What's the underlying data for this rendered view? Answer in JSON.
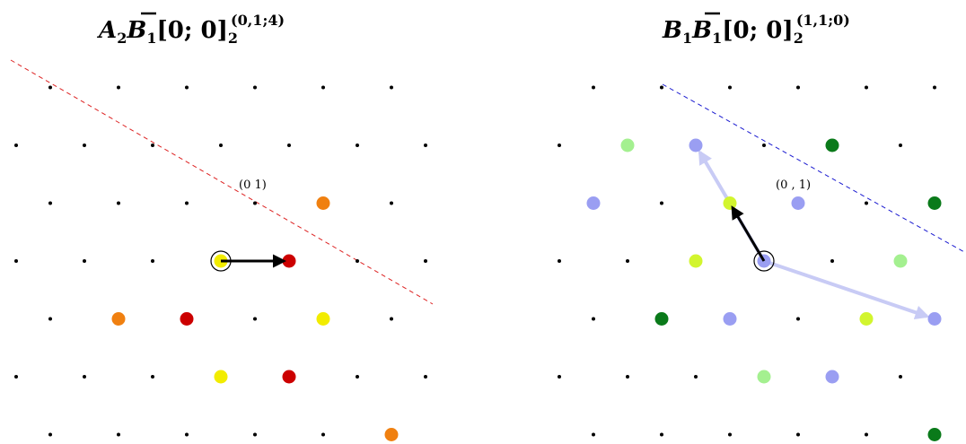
{
  "colors": {
    "lattice": "#000000",
    "red": "#cc0000",
    "orange": "#f08010",
    "yellow": "#f2ec00",
    "darkgreen": "#0a7a1a",
    "lightgreen": "#a4f090",
    "yellowgreen": "#d2f52e",
    "lavender": "#9a9ef2",
    "lavender_arrow": "#c8cbf5",
    "red_dashed": "#dd2222",
    "blue_dashed": "#1a1ad0"
  },
  "panels": [
    {
      "name": "left",
      "title": {
        "base": "A",
        "sub1": "2",
        "bar": "B",
        "sub2": "1",
        "bracket": "[0; 0]",
        "sub3": "2",
        "sup": "(0,1;4)"
      },
      "label": "(0 1)",
      "colored_points": [
        {
          "pos": [
            2,
            1
          ],
          "color": "orange"
        },
        {
          "pos": [
            1,
            0
          ],
          "color": "red"
        },
        {
          "pos": [
            0,
            0
          ],
          "color": "yellow"
        },
        {
          "pos": [
            -2,
            -1
          ],
          "color": "orange"
        },
        {
          "pos": [
            -1,
            -1
          ],
          "color": "red"
        },
        {
          "pos": [
            1,
            -1
          ],
          "color": "yellow"
        },
        {
          "pos": [
            -1,
            -2
          ],
          "color": "yellow"
        },
        {
          "pos": [
            0,
            -2
          ],
          "color": "red"
        },
        {
          "pos": [
            1,
            -3
          ],
          "color": "orange"
        }
      ],
      "arrows": [
        {
          "to": [
            1,
            0
          ],
          "style": "black"
        }
      ],
      "dashed_line": {
        "color": "red_dashed"
      }
    },
    {
      "name": "right",
      "title": {
        "base": "B",
        "sub1": "1",
        "bar": "B",
        "sub2": "1",
        "bracket": "[0; 0]",
        "sub3": "2",
        "sup": "(1,1;0)"
      },
      "label": "(0 , 1)",
      "colored_points": [
        {
          "pos": [
            2,
            2
          ],
          "color": "darkgreen"
        },
        {
          "pos": [
            -1,
            2
          ],
          "color": "lightgreen"
        },
        {
          "pos": [
            0,
            2
          ],
          "color": "lavender"
        },
        {
          "pos": [
            3,
            1
          ],
          "color": "darkgreen"
        },
        {
          "pos": [
            -3,
            1
          ],
          "color": "darkgreen"
        },
        {
          "pos": [
            -2,
            1
          ],
          "color": "lavender"
        },
        {
          "pos": [
            0,
            1
          ],
          "color": "yellowgreen"
        },
        {
          "pos": [
            1,
            1
          ],
          "color": "lavender"
        },
        {
          "pos": [
            -1,
            0
          ],
          "color": "yellowgreen"
        },
        {
          "pos": [
            0,
            0
          ],
          "color": "lavender"
        },
        {
          "pos": [
            2,
            0
          ],
          "color": "lightgreen"
        },
        {
          "pos": [
            -2,
            -1
          ],
          "color": "darkgreen"
        },
        {
          "pos": [
            -1,
            -1
          ],
          "color": "lavender"
        },
        {
          "pos": [
            1,
            -1
          ],
          "color": "yellowgreen"
        },
        {
          "pos": [
            2,
            -1
          ],
          "color": "lavender"
        },
        {
          "pos": [
            -1,
            -2
          ],
          "color": "lightgreen"
        },
        {
          "pos": [
            0,
            -2
          ],
          "color": "lavender"
        },
        {
          "pos": [
            3,
            -2
          ],
          "color": "darkgreen"
        },
        {
          "pos": [
            1,
            -3
          ],
          "color": "darkgreen"
        }
      ],
      "arrows": [
        {
          "to": [
            0,
            2
          ],
          "style": "lavender"
        },
        {
          "to": [
            2,
            -1
          ],
          "style": "lavender"
        },
        {
          "to": [
            0,
            1
          ],
          "style": "black"
        }
      ],
      "dashed_line": {
        "color": "blue_dashed"
      }
    }
  ]
}
